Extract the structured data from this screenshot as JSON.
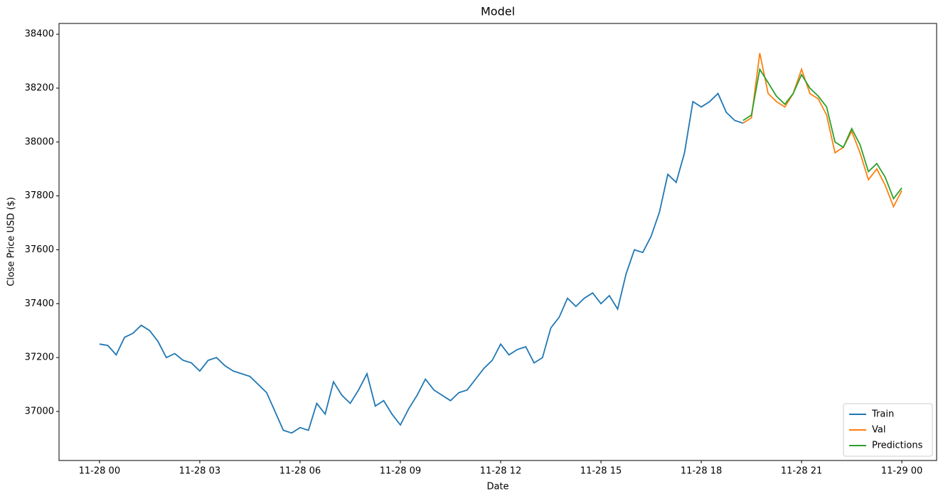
{
  "chart_data": {
    "type": "line",
    "title": "Model",
    "x_label": "Date",
    "y_label": "Close Price USD ($)",
    "xlim": [
      -1.21,
      25.04
    ],
    "ylim": [
      36818,
      38440
    ],
    "xticks": [
      {
        "value": 0,
        "label": "11-28 00"
      },
      {
        "value": 3,
        "label": "11-28 03"
      },
      {
        "value": 6,
        "label": "11-28 06"
      },
      {
        "value": 9,
        "label": "11-28 09"
      },
      {
        "value": 12,
        "label": "11-28 12"
      },
      {
        "value": 15,
        "label": "11-28 15"
      },
      {
        "value": 18,
        "label": "11-28 18"
      },
      {
        "value": 21,
        "label": "11-28 21"
      },
      {
        "value": 24,
        "label": "11-29 00"
      }
    ],
    "yticks": [
      37000,
      37200,
      37400,
      37600,
      37800,
      38000,
      38200,
      38400
    ],
    "grid": false,
    "legend": "lower right",
    "series": [
      {
        "name": "Train",
        "color": "#1f77b4",
        "x": [
          0,
          0.25,
          0.5,
          0.75,
          1,
          1.25,
          1.5,
          1.75,
          2,
          2.25,
          2.5,
          2.75,
          3,
          3.25,
          3.5,
          3.75,
          4,
          4.25,
          4.5,
          4.75,
          5,
          5.25,
          5.5,
          5.75,
          6,
          6.25,
          6.5,
          6.75,
          7,
          7.25,
          7.5,
          7.75,
          8,
          8.25,
          8.5,
          8.75,
          9,
          9.25,
          9.5,
          9.75,
          10,
          10.25,
          10.5,
          10.75,
          11,
          11.25,
          11.5,
          11.75,
          12,
          12.25,
          12.5,
          12.75,
          13,
          13.25,
          13.5,
          13.75,
          14,
          14.25,
          14.5,
          14.75,
          15,
          15.25,
          15.5,
          15.75,
          16,
          16.25,
          16.5,
          16.75,
          17,
          17.25,
          17.5,
          17.75,
          18,
          18.25,
          18.5,
          18.75,
          19,
          19.25
        ],
        "values": [
          37250,
          37245,
          37210,
          37275,
          37290,
          37320,
          37300,
          37260,
          37200,
          37215,
          37190,
          37180,
          37150,
          37190,
          37200,
          37170,
          37150,
          37140,
          37130,
          37100,
          37070,
          37000,
          36930,
          36920,
          36940,
          36930,
          37030,
          36990,
          37110,
          37060,
          37030,
          37080,
          37140,
          37020,
          37040,
          36990,
          36950,
          37010,
          37060,
          37120,
          37080,
          37060,
          37040,
          37070,
          37080,
          37120,
          37160,
          37190,
          37250,
          37210,
          37230,
          37240,
          37180,
          37200,
          37310,
          37350,
          37420,
          37390,
          37420,
          37440,
          37400,
          37430,
          37380,
          37510,
          37600,
          37590,
          37650,
          37740,
          37880,
          37850,
          37960,
          38150,
          38130,
          38150,
          38180,
          38110,
          38080,
          38070
        ]
      },
      {
        "name": "Val",
        "color": "#ff7f0e",
        "x": [
          19.25,
          19.5,
          19.75,
          20,
          20.25,
          20.5,
          20.75,
          21,
          21.25,
          21.5,
          21.75,
          22,
          22.25,
          22.5,
          22.75,
          23,
          23.25,
          23.5,
          23.75,
          24
        ],
        "values": [
          38070,
          38090,
          38330,
          38180,
          38150,
          38130,
          38180,
          38270,
          38180,
          38160,
          38100,
          37960,
          37980,
          38040,
          37960,
          37860,
          37900,
          37840,
          37760,
          37820
        ]
      },
      {
        "name": "Predictions",
        "color": "#2ca02c",
        "x": [
          19.25,
          19.5,
          19.75,
          20,
          20.25,
          20.5,
          20.75,
          21,
          21.25,
          21.5,
          21.75,
          22,
          22.25,
          22.5,
          22.75,
          23,
          23.25,
          23.5,
          23.75,
          24
        ],
        "values": [
          38080,
          38100,
          38270,
          38220,
          38170,
          38140,
          38180,
          38250,
          38200,
          38170,
          38130,
          38000,
          37980,
          38050,
          37990,
          37890,
          37920,
          37870,
          37790,
          37830
        ]
      }
    ]
  }
}
